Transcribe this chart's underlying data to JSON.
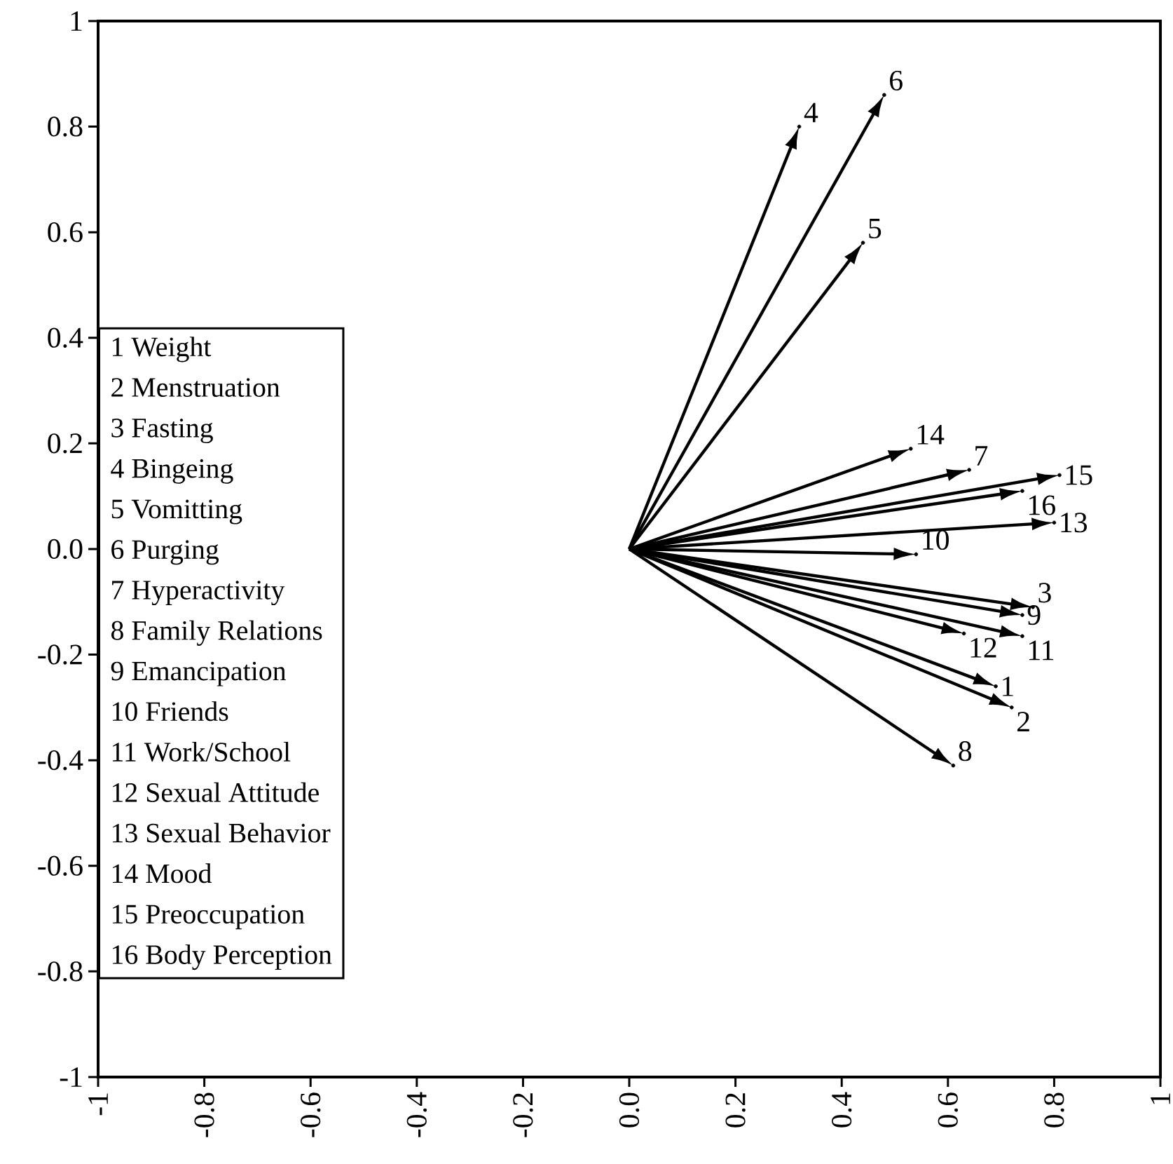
{
  "chart_data": {
    "type": "scatter",
    "x": [
      0.69,
      0.72,
      0.76,
      0.32,
      0.44,
      0.48,
      0.64,
      0.61,
      0.74,
      0.54,
      0.74,
      0.63,
      0.8,
      0.53,
      0.81,
      0.74
    ],
    "values": [
      -0.26,
      -0.3,
      -0.11,
      0.8,
      0.58,
      0.86,
      0.15,
      -0.41,
      -0.125,
      -0.01,
      -0.165,
      -0.16,
      0.05,
      0.19,
      0.14,
      0.11
    ],
    "xlim": [
      -1,
      1
    ],
    "ylim": [
      -1,
      1
    ],
    "xticks": [
      -1,
      -0.8,
      -0.6,
      -0.4,
      -0.2,
      {
        "value": 0,
        "label": "0.0"
      },
      0.2,
      0.4,
      0.6,
      0.8,
      1
    ],
    "yticks": [
      -1,
      -0.8,
      -0.6,
      -0.4,
      -0.2,
      {
        "value": 0,
        "label": "0.0"
      },
      0.2,
      0.4,
      0.6,
      0.8,
      1
    ],
    "annotations": [
      {
        "text": "1",
        "x": 0.69,
        "y": -0.26
      },
      {
        "text": "2",
        "x": 0.72,
        "y": -0.3
      },
      {
        "text": "3",
        "x": 0.76,
        "y": -0.11
      },
      {
        "text": "4",
        "x": 0.32,
        "y": 0.8
      },
      {
        "text": "5",
        "x": 0.44,
        "y": 0.58
      },
      {
        "text": "6",
        "x": 0.48,
        "y": 0.86
      },
      {
        "text": "7",
        "x": 0.64,
        "y": 0.15
      },
      {
        "text": "8",
        "x": 0.61,
        "y": -0.41
      },
      {
        "text": "9",
        "x": 0.74,
        "y": -0.125
      },
      {
        "text": "10",
        "x": 0.54,
        "y": -0.01
      },
      {
        "text": "11",
        "x": 0.74,
        "y": -0.165
      },
      {
        "text": "12",
        "x": 0.63,
        "y": -0.16
      },
      {
        "text": "13",
        "x": 0.8,
        "y": 0.05
      },
      {
        "text": "14",
        "x": 0.53,
        "y": 0.19
      },
      {
        "text": "15",
        "x": 0.81,
        "y": 0.14
      },
      {
        "text": "16",
        "x": 0.74,
        "y": 0.11
      },
      "1 Weight",
      "2 Menstruation",
      "3 Fasting",
      "4 Bingeing",
      "5 Vomitting",
      "6 Purging",
      "7 Hyperactivity",
      "8 Family Relations",
      "9 Emancipation",
      "10 Friends",
      "11 Work/School",
      "12 Sexual Attitude",
      "13 Sexual Behavior",
      "14 Mood",
      "15 Preoccupation",
      "16 Body Perception"
    ]
  }
}
